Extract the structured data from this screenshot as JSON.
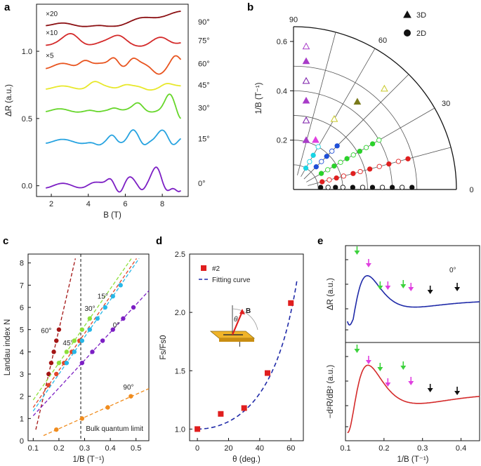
{
  "figure_title": "Figure panels a-e",
  "chart_data": [
    {
      "panel": "a",
      "type": "line",
      "title": "",
      "xlabel": "B (T)",
      "ylabel": "ΔR (a.u.)",
      "xlim": [
        1.2,
        9.4
      ],
      "ylim": [
        -0.08,
        1.35
      ],
      "xticks": [
        2,
        4,
        6,
        8
      ],
      "yticks": [
        0.0,
        0.5,
        1.0
      ],
      "series": [
        {
          "name": "0°",
          "color": "#7c1fc4",
          "offset": 0.0,
          "scale_label": ""
        },
        {
          "name": "15°",
          "color": "#27a3e0",
          "offset": 0.33,
          "scale_label": ""
        },
        {
          "name": "30°",
          "color": "#66d62a",
          "offset": 0.56,
          "scale_label": ""
        },
        {
          "name": "45°",
          "color": "#e8e82a",
          "offset": 0.73,
          "scale_label": ""
        },
        {
          "name": "60°",
          "color": "#e8541f",
          "offset": 0.89,
          "scale_label": "×5"
        },
        {
          "name": "75°",
          "color": "#d42a2a",
          "offset": 1.06,
          "scale_label": "×10"
        },
        {
          "name": "90°",
          "color": "#8b0f12",
          "offset": 1.2,
          "scale_label": "×20"
        }
      ]
    },
    {
      "panel": "b",
      "type": "scatter",
      "title": "",
      "ylabel": "1/B (T⁻¹)",
      "radial_ticks": [
        "0.2",
        "0.4",
        "0.6"
      ],
      "angle_ticks": [
        "0",
        "30",
        "60",
        "90"
      ],
      "legend": [
        {
          "symbol": "triangle",
          "label": "3D"
        },
        {
          "symbol": "circle",
          "label": "2D"
        }
      ],
      "angles_deg": [
        0,
        15,
        30,
        45,
        60,
        75,
        90
      ],
      "points_1_over_B": {
        "0": [
          0.11,
          0.14,
          0.17,
          0.2,
          0.24,
          0.28,
          0.32,
          0.36,
          0.4,
          0.44,
          0.48
        ],
        "15": [
          0.12,
          0.15,
          0.18,
          0.21,
          0.25,
          0.28,
          0.32,
          0.36,
          0.4,
          0.44,
          0.48
        ],
        "30": [
          0.13,
          0.16,
          0.19,
          0.22,
          0.25,
          0.28,
          0.31,
          0.34,
          0.37,
          0.4
        ],
        "45": [
          0.13,
          0.16,
          0.19,
          0.22,
          0.25
        ],
        "60": [
          0.1,
          0.13,
          0.16,
          0.2
        ],
        "75": [
          0.22,
          0.33,
          0.44,
          0.55
        ],
        "90": [
          0.2,
          0.28,
          0.36,
          0.44,
          0.52,
          0.58
        ]
      }
    },
    {
      "panel": "c",
      "type": "scatter",
      "title": "",
      "xlabel": "1/B (T⁻¹)",
      "ylabel": "Landau index N",
      "xlim": [
        0.08,
        0.55
      ],
      "ylim": [
        0,
        8.4
      ],
      "xticks": [
        0.1,
        0.2,
        0.3,
        0.4,
        0.5
      ],
      "yticks": [
        0,
        1,
        2,
        3,
        4,
        5,
        6,
        7,
        8
      ],
      "vertical_line_x": 0.285,
      "annotation": "Bulk quantum limit",
      "series": [
        {
          "name": "60°",
          "color": "#a31414",
          "x": [
            0.16,
            0.17,
            0.18,
            0.19,
            0.2
          ],
          "y": [
            3.0,
            3.5,
            4.0,
            4.5,
            5.0
          ]
        },
        {
          "name": "45°",
          "color": "#e2472a",
          "x": [
            0.16,
            0.19,
            0.22,
            0.25,
            0.28
          ],
          "y": [
            2.5,
            3.0,
            3.5,
            4.0,
            4.5
          ]
        },
        {
          "name": "30°",
          "color": "#8de03a",
          "x": [
            0.2,
            0.23,
            0.26,
            0.29,
            0.32
          ],
          "y": [
            3.5,
            4.0,
            4.5,
            5.0,
            5.5
          ]
        },
        {
          "name": "15°",
          "color": "#27b7e8",
          "x": [
            0.23,
            0.26,
            0.29,
            0.32,
            0.35,
            0.38,
            0.41,
            0.44
          ],
          "y": [
            3.5,
            4.0,
            4.5,
            5.0,
            5.5,
            6.0,
            6.5,
            7.0
          ]
        },
        {
          "name": "0°",
          "color": "#7c1fc4",
          "x": [
            0.29,
            0.33,
            0.37,
            0.41,
            0.45,
            0.49
          ],
          "y": [
            3.5,
            4.0,
            4.5,
            5.0,
            5.5,
            6.0
          ]
        },
        {
          "name": "90°",
          "color": "#f08c1e",
          "x": [
            0.19,
            0.29,
            0.39,
            0.48
          ],
          "y": [
            0.5,
            1.0,
            1.5,
            2.0
          ]
        }
      ]
    },
    {
      "panel": "d",
      "type": "scatter",
      "title": "",
      "xlabel": "θ (deg.)",
      "ylabel": "Fs/Fs0",
      "xlim": [
        -5,
        68
      ],
      "ylim": [
        0.9,
        2.5
      ],
      "xticks": [
        0,
        20,
        40,
        60
      ],
      "yticks": [
        1.0,
        1.5,
        2.0,
        2.5
      ],
      "legend": [
        {
          "symbol": "square",
          "label": "#2"
        },
        {
          "symbol": "dash",
          "label": "Fitting curve"
        }
      ],
      "points": {
        "x": [
          0,
          15,
          30,
          45,
          60
        ],
        "y": [
          1.0,
          1.13,
          1.18,
          1.48,
          2.08
        ]
      },
      "fit": "1/cos(theta)",
      "inset_labels": [
        "B",
        "θ",
        "I"
      ]
    },
    {
      "panel": "e",
      "type": "line",
      "title": "",
      "xlabel": "1/B (T⁻¹)",
      "xlim": [
        0.1,
        0.45
      ],
      "xticks": [
        0.1,
        0.2,
        0.3,
        0.4
      ],
      "top": {
        "ylabel": "ΔR (a.u.)",
        "color": "#1f2aa8",
        "label": "0°"
      },
      "bottom": {
        "ylabel": "−d²R/dB² (a.u.)",
        "color": "#d42a2a"
      },
      "markers_x": [
        0.13,
        0.16,
        0.19,
        0.21,
        0.25,
        0.27,
        0.32,
        0.39
      ],
      "marker_colors": [
        "#3cd23c",
        "#e040e0",
        "#3cd23c",
        "#e040e0",
        "#3cd23c",
        "#e040e0",
        "#111111",
        "#111111"
      ]
    }
  ],
  "labels": {
    "a": "a",
    "b": "b",
    "c": "c",
    "d": "d",
    "e": "e"
  }
}
